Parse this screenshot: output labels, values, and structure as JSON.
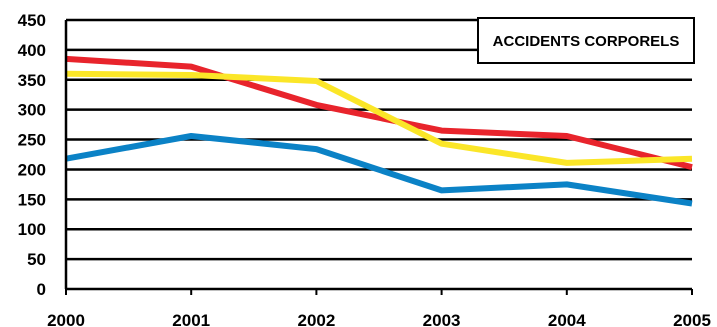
{
  "chart_data": {
    "type": "line",
    "x": [
      "2000",
      "2001",
      "2002",
      "2003",
      "2004",
      "2005"
    ],
    "y_ticks": [
      "0",
      "50",
      "100",
      "150",
      "200",
      "250",
      "300",
      "350",
      "400",
      "450"
    ],
    "ylim": [
      0,
      450
    ],
    "grid": true,
    "legend_box_label": "ACCIDENTS CORPORELS",
    "series": [
      {
        "color": "#e8242c",
        "values": [
          385,
          372,
          308,
          265,
          256,
          204
        ]
      },
      {
        "color": "#fbe628",
        "values": [
          360,
          358,
          348,
          243,
          211,
          218
        ]
      },
      {
        "color": "#0b82c6",
        "values": [
          218,
          256,
          234,
          165,
          175,
          143
        ]
      }
    ]
  }
}
